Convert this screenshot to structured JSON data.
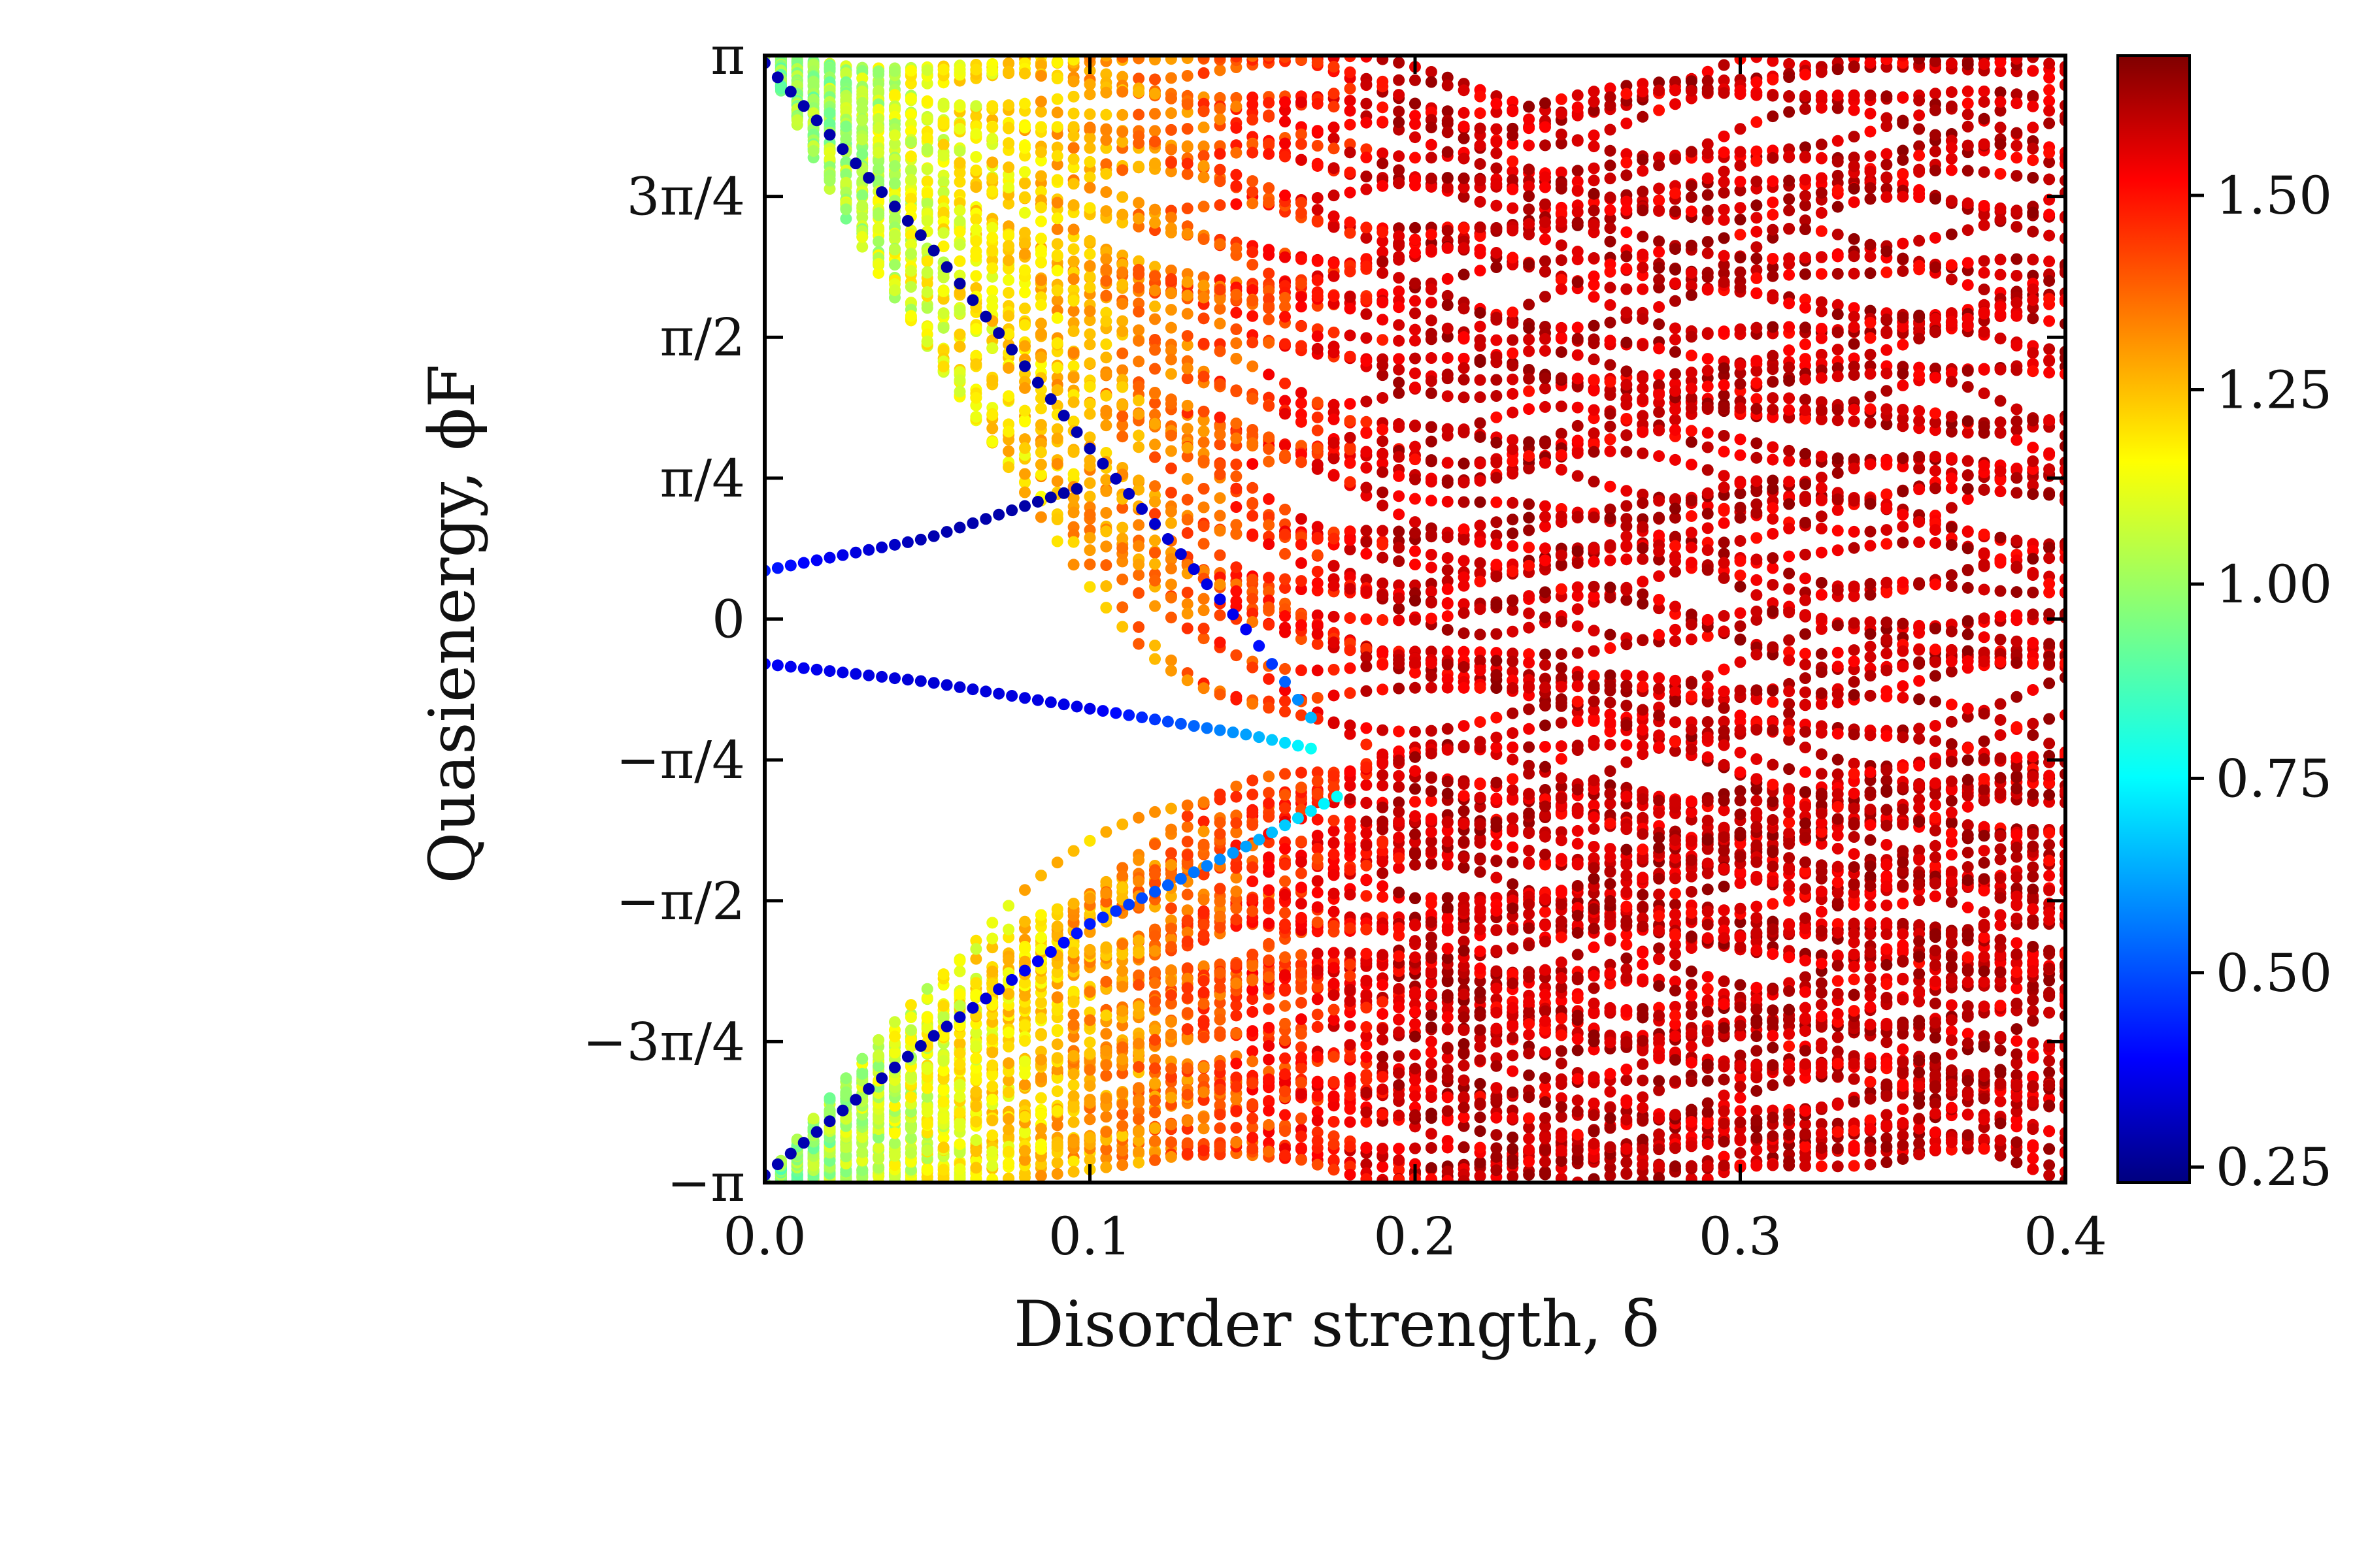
{
  "chart_data": {
    "type": "scatter",
    "title": "",
    "xlabel": "Disorder strength, δ",
    "ylabel": "Quasienergy, ϕF",
    "xlim": [
      0.0,
      0.4
    ],
    "ylim": [
      -3.14159,
      3.14159
    ],
    "x_ticks": [
      {
        "value": 0.0,
        "label": "0.0"
      },
      {
        "value": 0.1,
        "label": "0.1"
      },
      {
        "value": 0.2,
        "label": "0.2"
      },
      {
        "value": 0.3,
        "label": "0.3"
      },
      {
        "value": 0.4,
        "label": "0.4"
      }
    ],
    "y_ticks": [
      {
        "value": 3.14159,
        "label": "π"
      },
      {
        "value": 2.35619,
        "label": "3π/4"
      },
      {
        "value": 1.5708,
        "label": "π/2"
      },
      {
        "value": 0.7854,
        "label": "π/4"
      },
      {
        "value": 0.0,
        "label": "0"
      },
      {
        "value": -0.7854,
        "label": "−π/4"
      },
      {
        "value": -1.5708,
        "label": "−π/2"
      },
      {
        "value": -2.35619,
        "label": "−3π/4"
      },
      {
        "value": -3.14159,
        "label": "−π"
      }
    ],
    "grid": false,
    "colorbar": {
      "colormap": "jet",
      "range": [
        0.23,
        1.68
      ],
      "ticks": [
        {
          "value": 0.25,
          "label": "0.25"
        },
        {
          "value": 0.5,
          "label": "0.50"
        },
        {
          "value": 0.75,
          "label": "0.75"
        },
        {
          "value": 1.0,
          "label": "1.00"
        },
        {
          "value": 1.25,
          "label": "1.25"
        },
        {
          "value": 1.5,
          "label": "1.50"
        }
      ]
    },
    "x_sample_step": 0.005,
    "edge_bands": [
      {
        "x": [
          0.0,
          0.05,
          0.1
        ],
        "y": [
          0.27,
          0.45,
          0.75
        ],
        "c": [
          0.45,
          0.3,
          0.28
        ]
      },
      {
        "x": [
          0.0,
          0.05,
          0.1,
          0.15,
          0.17
        ],
        "y": [
          -0.25,
          -0.35,
          -0.5,
          -0.65,
          -0.73
        ],
        "c": [
          0.4,
          0.35,
          0.38,
          0.65,
          0.8
        ]
      },
      {
        "x": [
          0.0,
          0.05,
          0.1,
          0.15,
          0.17
        ],
        "y": [
          3.1,
          2.1,
          0.95,
          -0.1,
          -0.6
        ],
        "c": [
          0.3,
          0.28,
          0.3,
          0.4,
          0.7
        ]
      },
      {
        "x": [
          0.0,
          0.05,
          0.1,
          0.15,
          0.18
        ],
        "y": [
          -3.1,
          -2.35,
          -1.7,
          -1.25,
          -0.95
        ],
        "c": [
          0.3,
          0.3,
          0.45,
          0.65,
          0.8
        ]
      }
    ],
    "bulk_bands": {
      "count": 56,
      "upper_start": 3.14159,
      "lower_start": -3.14159,
      "c_start": 0.95,
      "c_end": 1.57
    }
  }
}
